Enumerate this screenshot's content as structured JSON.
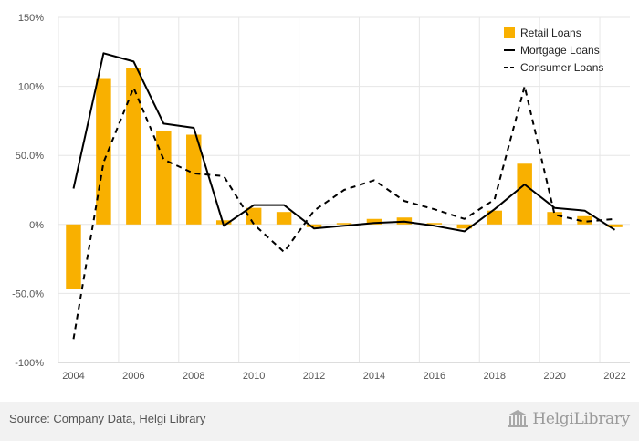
{
  "chart_data": {
    "type": "bar",
    "x": [
      2004,
      2005,
      2006,
      2007,
      2008,
      2009,
      2010,
      2011,
      2012,
      2013,
      2014,
      2015,
      2016,
      2017,
      2018,
      2019,
      2020,
      2021,
      2022
    ],
    "x_tick_labels": [
      "2004",
      "2006",
      "2008",
      "2010",
      "2012",
      "2014",
      "2016",
      "2018",
      "2020",
      "2022"
    ],
    "y_tick_labels": [
      "150%",
      "100%",
      "50.0%",
      "0%",
      "-50.0%",
      "-100%"
    ],
    "y_ticks": [
      150,
      100,
      50,
      0,
      -50,
      -100
    ],
    "ylim": [
      -100,
      150
    ],
    "grid": true,
    "legend_position": "top-right",
    "series": [
      {
        "name": "Retail Loans",
        "kind": "bar",
        "color": "#f9b000",
        "values": [
          -47,
          106,
          113,
          68,
          65,
          3,
          12,
          9,
          -2,
          1,
          4,
          5,
          1,
          -3,
          10,
          44,
          9,
          6,
          -2
        ]
      },
      {
        "name": "Mortgage Loans",
        "kind": "line",
        "color": "#000000",
        "dash": "solid",
        "values": [
          26,
          124,
          118,
          73,
          70,
          -1,
          14,
          14,
          -3,
          -1,
          1,
          2,
          -1,
          -5,
          11,
          29,
          12,
          10,
          -4
        ]
      },
      {
        "name": "Consumer Loans",
        "kind": "line",
        "color": "#000000",
        "dash": "dashed",
        "values": [
          -83,
          45,
          99,
          47,
          37,
          35,
          0,
          -20,
          10,
          25,
          32,
          17,
          11,
          4,
          18,
          100,
          7,
          2,
          4
        ]
      }
    ]
  },
  "footer": {
    "source": "Source: Company Data, Helgi Library",
    "brand": "HelgiLibrary",
    "brand_icon": "library-building-icon"
  }
}
